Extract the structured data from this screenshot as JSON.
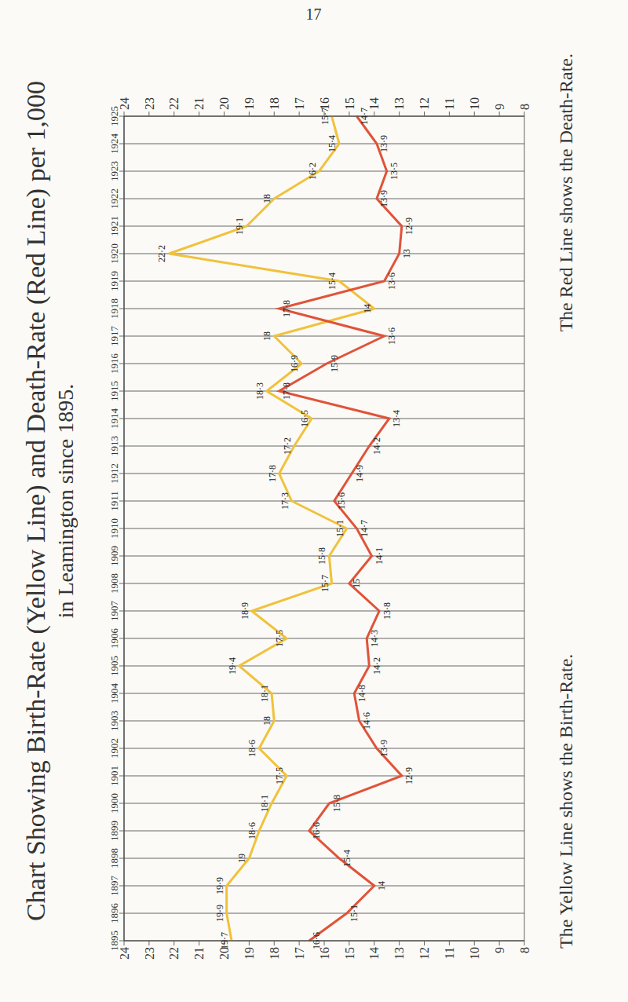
{
  "page": "17",
  "chart_data": {
    "type": "line",
    "title": "Chart Showing Birth-Rate (Yellow Line) and Death-Rate (Red Line) per 1,000",
    "subtitle": "in Leamington since 1895.",
    "annotations": [
      "The Yellow Line shows the Birth-Rate.",
      "The Red Line shows the Death-Rate."
    ],
    "categories": [
      "1895",
      "1896",
      "1897",
      "1898",
      "1899",
      "1900",
      "1901",
      "1902",
      "1903",
      "1904",
      "1905",
      "1906",
      "1907",
      "1908",
      "1909",
      "1910",
      "1911",
      "1912",
      "1913",
      "1914",
      "1915",
      "1916",
      "1917",
      "1918",
      "1919",
      "1920",
      "1921",
      "1922",
      "1923",
      "1924",
      "1925"
    ],
    "series": [
      {
        "name": "Birth-Rate",
        "color": "#f0c23c",
        "values": [
          19.7,
          19.9,
          19.9,
          19,
          18.6,
          18.1,
          17.5,
          18.6,
          18,
          18.1,
          19.4,
          17.5,
          18.9,
          15.7,
          15.8,
          15.1,
          17.3,
          17.8,
          17.2,
          16.5,
          18.3,
          16.9,
          18,
          14,
          15.4,
          22.2,
          19.1,
          18,
          16.2,
          15.4,
          15.7
        ],
        "value_labels": [
          "19·7",
          "19·9",
          "19·9",
          "19",
          "18·6",
          "18·1",
          "17·5",
          "18·6",
          "18",
          "18·1",
          "19·4",
          "17·5",
          "18·9",
          "15·7",
          "15·8",
          "15·1",
          "17·3",
          "17·8",
          "17·2",
          "16·5",
          "18·3",
          "16·9",
          "18",
          "14",
          "15·4",
          "22·2",
          "19·1",
          "18",
          "16·2",
          "15·4",
          "15·7"
        ]
      },
      {
        "name": "Death-Rate",
        "color": "#e0533a",
        "values": [
          16.6,
          15.1,
          14,
          15.4,
          16.6,
          15.8,
          12.9,
          13.9,
          14.6,
          14.8,
          14.2,
          14.3,
          13.8,
          15,
          14.1,
          14.7,
          15.6,
          14.9,
          14.2,
          13.4,
          17.8,
          15.9,
          13.6,
          17.8,
          13.6,
          13,
          12.9,
          13.9,
          13.5,
          13.9,
          14.7
        ],
        "value_labels": [
          "16·6",
          "15·1",
          "14",
          "15·4",
          "16·6",
          "15·8",
          "12·9",
          "13·9",
          "14·6",
          "14·8",
          "14·2",
          "14·3",
          "13·8",
          "15",
          "14·1",
          "14·7",
          "15·6",
          "14·9",
          "14·2",
          "13·4",
          "17·8",
          "15·9",
          "13·6",
          "17·8",
          "13·6",
          "13",
          "12·9",
          "13·9",
          "13·5",
          "13·9",
          "14·7"
        ]
      }
    ],
    "ylim": [
      8,
      24
    ],
    "yticks": [
      8,
      9,
      10,
      11,
      12,
      13,
      14,
      15,
      16,
      17,
      18,
      19,
      20,
      21,
      22,
      23,
      24
    ],
    "grid": true,
    "data_labels": true
  }
}
